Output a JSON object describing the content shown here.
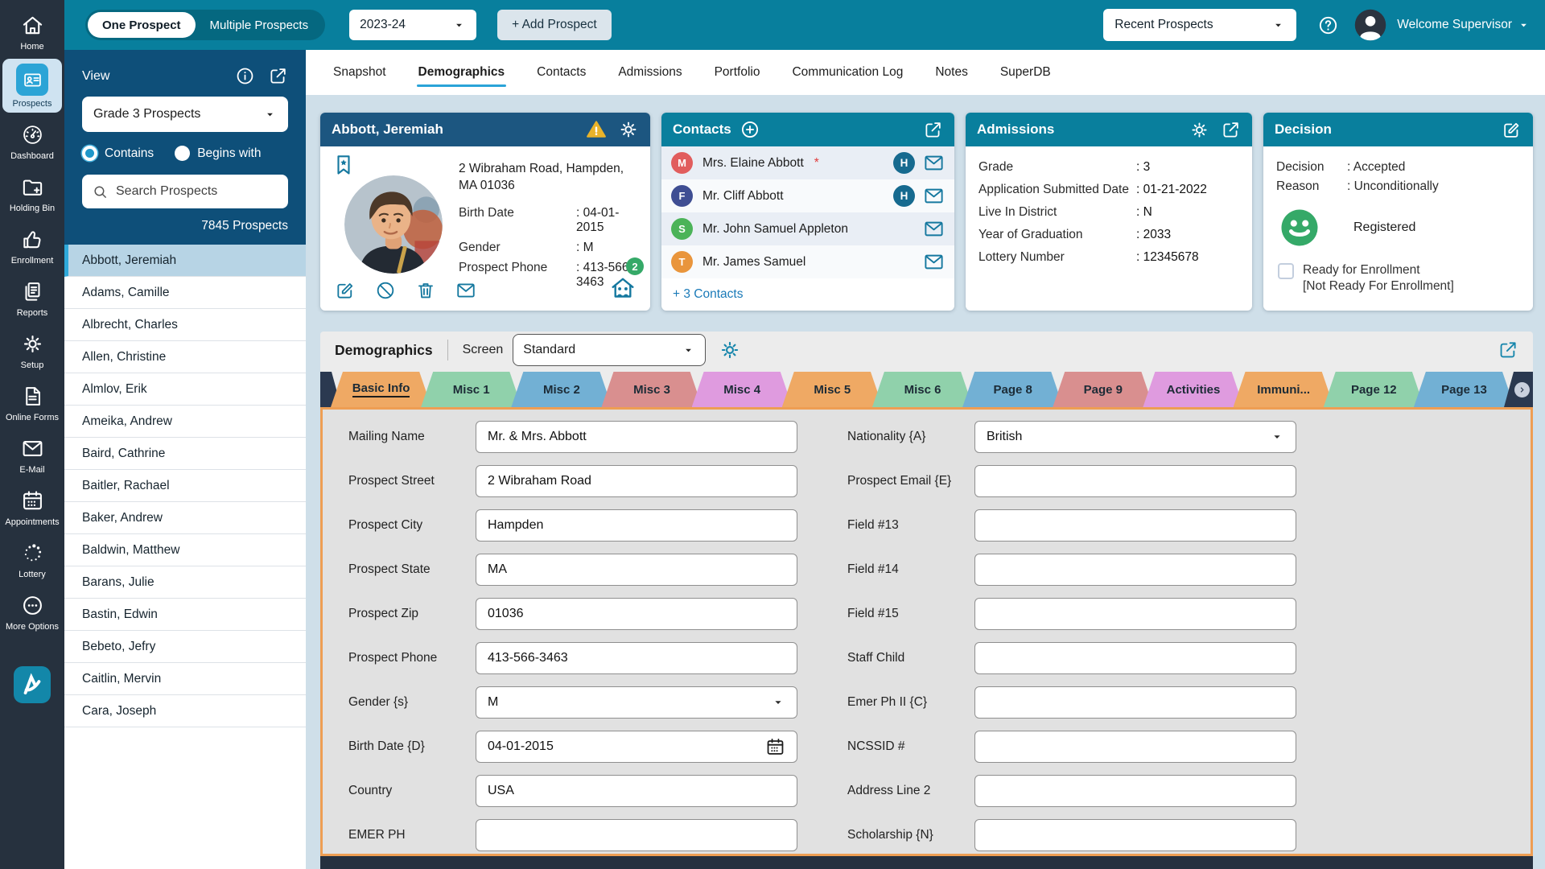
{
  "theme": {
    "topbar_teal": "#087f9d",
    "nav_dark": "#26313e",
    "sidebar_blue": "#0e4f79",
    "accent_blue": "#2aa3d8",
    "card_header_teal": "#097f9d",
    "student_header_blue": "#1c5680",
    "form_border_orange": "#ee9e53",
    "success_green": "#35a968",
    "warning_yellow": "#e9b32a"
  },
  "top_bar": {
    "toggle_one": "One Prospect",
    "toggle_multiple": "Multiple Prospects",
    "year_select": "2023-24",
    "add_button": "+ Add Prospect",
    "recent_select": "Recent Prospects",
    "welcome": "Welcome Supervisor"
  },
  "nav": {
    "items": [
      {
        "label": "Home",
        "icon": "home-icon"
      },
      {
        "label": "Prospects",
        "icon": "prospects-icon",
        "active": true
      },
      {
        "label": "Dashboard",
        "icon": "dashboard-icon"
      },
      {
        "label": "Holding Bin",
        "icon": "holding-bin-icon"
      },
      {
        "label": "Enrollment",
        "icon": "enrollment-icon"
      },
      {
        "label": "Reports",
        "icon": "reports-icon"
      },
      {
        "label": "Setup",
        "icon": "setup-icon"
      },
      {
        "label": "Online Forms",
        "icon": "online-forms-icon"
      },
      {
        "label": "E-Mail",
        "icon": "email-icon"
      },
      {
        "label": "Appointments",
        "icon": "appointments-icon"
      },
      {
        "label": "Lottery",
        "icon": "lottery-icon"
      },
      {
        "label": "More Options",
        "icon": "more-options-icon"
      }
    ]
  },
  "sidebar": {
    "view_label": "View",
    "view_select": "Grade 3 Prospects",
    "radio_contains": "Contains",
    "radio_begins": "Begins with",
    "search_placeholder": "Search Prospects",
    "count": "7845 Prospects",
    "names": [
      {
        "name": "Abbott, Jeremiah",
        "selected": true
      },
      {
        "name": "Adams, Camille"
      },
      {
        "name": "Albrecht, Charles"
      },
      {
        "name": "Allen, Christine"
      },
      {
        "name": "Almlov, Erik"
      },
      {
        "name": "Ameika, Andrew"
      },
      {
        "name": "Baird, Cathrine"
      },
      {
        "name": "Baitler, Rachael"
      },
      {
        "name": "Baker, Andrew"
      },
      {
        "name": "Baldwin, Matthew"
      },
      {
        "name": "Barans, Julie"
      },
      {
        "name": "Bastin, Edwin"
      },
      {
        "name": "Bebeto, Jefry"
      },
      {
        "name": "Caitlin, Mervin"
      },
      {
        "name": "Cara, Joseph"
      }
    ]
  },
  "main_tabs": {
    "items": [
      {
        "label": "Snapshot"
      },
      {
        "label": "Demographics",
        "active": true
      },
      {
        "label": "Contacts"
      },
      {
        "label": "Admissions"
      },
      {
        "label": "Portfolio"
      },
      {
        "label": "Communication Log"
      },
      {
        "label": "Notes"
      },
      {
        "label": "SuperDB"
      }
    ]
  },
  "student_card": {
    "name": "Abbott, Jeremiah",
    "address_line1": "2 Wibraham Road, Hampden,",
    "address_line2": "MA 01036",
    "fields": [
      {
        "label": "Birth Date",
        "value": "04-01-2015"
      },
      {
        "label": "Gender",
        "value": "M"
      },
      {
        "label": "Prospect Phone",
        "value": "413-566-3463"
      }
    ],
    "siblings_badge": "2"
  },
  "contacts_card": {
    "title": "Contacts",
    "rows": [
      {
        "initial": "M",
        "color": "#e15d5d",
        "name": "Mrs. Elaine Abbott",
        "required": true,
        "h_badge": "H"
      },
      {
        "initial": "F",
        "color": "#3f4e93",
        "name": "Mr. Cliff Abbott",
        "h_badge": "H"
      },
      {
        "initial": "S",
        "color": "#4bb358",
        "name": "Mr. John Samuel Appleton"
      },
      {
        "initial": "T",
        "color": "#e9953c",
        "name": "Mr. James Samuel"
      }
    ],
    "more_link": "+ 3 Contacts"
  },
  "admissions_card": {
    "title": "Admissions",
    "fields": [
      {
        "label": "Grade",
        "value": "3"
      },
      {
        "label": "Application Submitted Date",
        "value": "01-21-2022"
      },
      {
        "label": "Live In District",
        "value": "N"
      },
      {
        "label": "Year of Graduation",
        "value": "2033"
      },
      {
        "label": "Lottery Number",
        "value": "12345678"
      }
    ]
  },
  "decision_card": {
    "title": "Decision",
    "fields": [
      {
        "label": "Decision",
        "value": "Accepted"
      },
      {
        "label": "Reason",
        "value": "Unconditionally"
      }
    ],
    "registered_label": "Registered",
    "checkbox_label": "Ready for Enrollment",
    "checkbox_sub": "[Not Ready For Enrollment]"
  },
  "demographics": {
    "title": "Demographics",
    "screen_label": "Screen",
    "screen_value": "Standard",
    "tabs": [
      {
        "label": "Basic Info",
        "color": "#efa964",
        "active": true
      },
      {
        "label": "Misc 1",
        "color": "#90d1ab"
      },
      {
        "label": "Misc 2",
        "color": "#72b0d4"
      },
      {
        "label": "Misc 3",
        "color": "#d98f8f"
      },
      {
        "label": "Misc 4",
        "color": "#df9bdf"
      },
      {
        "label": "Misc 5",
        "color": "#efa964"
      },
      {
        "label": "Misc 6",
        "color": "#90d1ab"
      },
      {
        "label": "Page 8",
        "color": "#72b0d4"
      },
      {
        "label": "Page 9",
        "color": "#d98f8f"
      },
      {
        "label": "Activities",
        "color": "#df9bdf"
      },
      {
        "label": "Immuni...",
        "color": "#efa964"
      },
      {
        "label": "Page 12",
        "color": "#90d1ab"
      },
      {
        "label": "Page 13",
        "color": "#72b0d4"
      }
    ],
    "form_left": [
      {
        "label": "Mailing Name",
        "value": "Mr. & Mrs. Abbott",
        "name": "mailing-name-field"
      },
      {
        "label": "Prospect Street",
        "value": "2 Wibraham Road",
        "name": "prospect-street-field"
      },
      {
        "label": "Prospect City",
        "value": "Hampden",
        "name": "prospect-city-field"
      },
      {
        "label": "Prospect State",
        "value": "MA",
        "name": "prospect-state-field"
      },
      {
        "label": "Prospect Zip",
        "value": "01036",
        "name": "prospect-zip-field"
      },
      {
        "label": "Prospect Phone",
        "value": "413-566-3463",
        "name": "prospect-phone-field"
      },
      {
        "label": "Gender {s}",
        "value": "M",
        "name": "gender-select",
        "select": true
      },
      {
        "label": "Birth Date {D}",
        "value": "04-01-2015",
        "name": "birth-date-field",
        "date": true
      },
      {
        "label": "Country",
        "value": "USA",
        "name": "country-field"
      },
      {
        "label": "EMER PH",
        "value": "",
        "name": "emer-ph-field"
      }
    ],
    "form_right": [
      {
        "label": "Nationality {A}",
        "value": "British",
        "name": "nationality-select",
        "select": true
      },
      {
        "label": "Prospect Email {E}",
        "value": "",
        "name": "prospect-email-field"
      },
      {
        "label": "Field #13",
        "value": "",
        "name": "field-13-field"
      },
      {
        "label": "Field #14",
        "value": "",
        "name": "field-14-field"
      },
      {
        "label": "Field #15",
        "value": "",
        "name": "field-15-field"
      },
      {
        "label": "Staff Child",
        "value": "",
        "name": "staff-child-field"
      },
      {
        "label": "Emer Ph II {C}",
        "value": "",
        "name": "emer-ph-2-field"
      },
      {
        "label": "NCSSID #",
        "value": "",
        "name": "ncssid-field"
      },
      {
        "label": "Address Line 2",
        "value": "",
        "name": "address-line-2-field"
      },
      {
        "label": "Scholarship {N}",
        "value": "",
        "name": "scholarship-field"
      }
    ]
  }
}
